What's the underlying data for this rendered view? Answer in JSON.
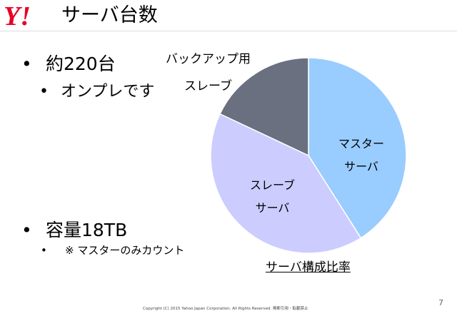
{
  "header": {
    "logo_text": "Y!",
    "title": "サーバ台数"
  },
  "bullets": [
    {
      "marker": "•",
      "text": "約220台"
    },
    {
      "marker": "•",
      "text": "オンプレです"
    },
    {
      "marker": "•",
      "text": "容量18TB"
    },
    {
      "marker": "•",
      "text": "※ マスターのみカウント"
    }
  ],
  "chart_data": {
    "type": "pie",
    "title": "サーバ構成比率",
    "slices": [
      {
        "label": "マスターサーバ",
        "label_lines": [
          "マスター",
          "サーバ"
        ],
        "value": 41,
        "color": "#99ccff"
      },
      {
        "label": "スレーブサーバ",
        "label_lines": [
          "スレーブ",
          "サーバ"
        ],
        "value": 41,
        "color": "#ccccff"
      },
      {
        "label": "バックアップ用スレーブ",
        "label_lines": [
          "バックアップ用",
          "スレーブ"
        ],
        "value": 18,
        "color": "#6b7080"
      }
    ]
  },
  "footer": {
    "copyright": "Copyright (C) 2015 Yahoo Japan Corporation. All Rights Reserved. 無断引用・転載禁止",
    "page": "7"
  }
}
